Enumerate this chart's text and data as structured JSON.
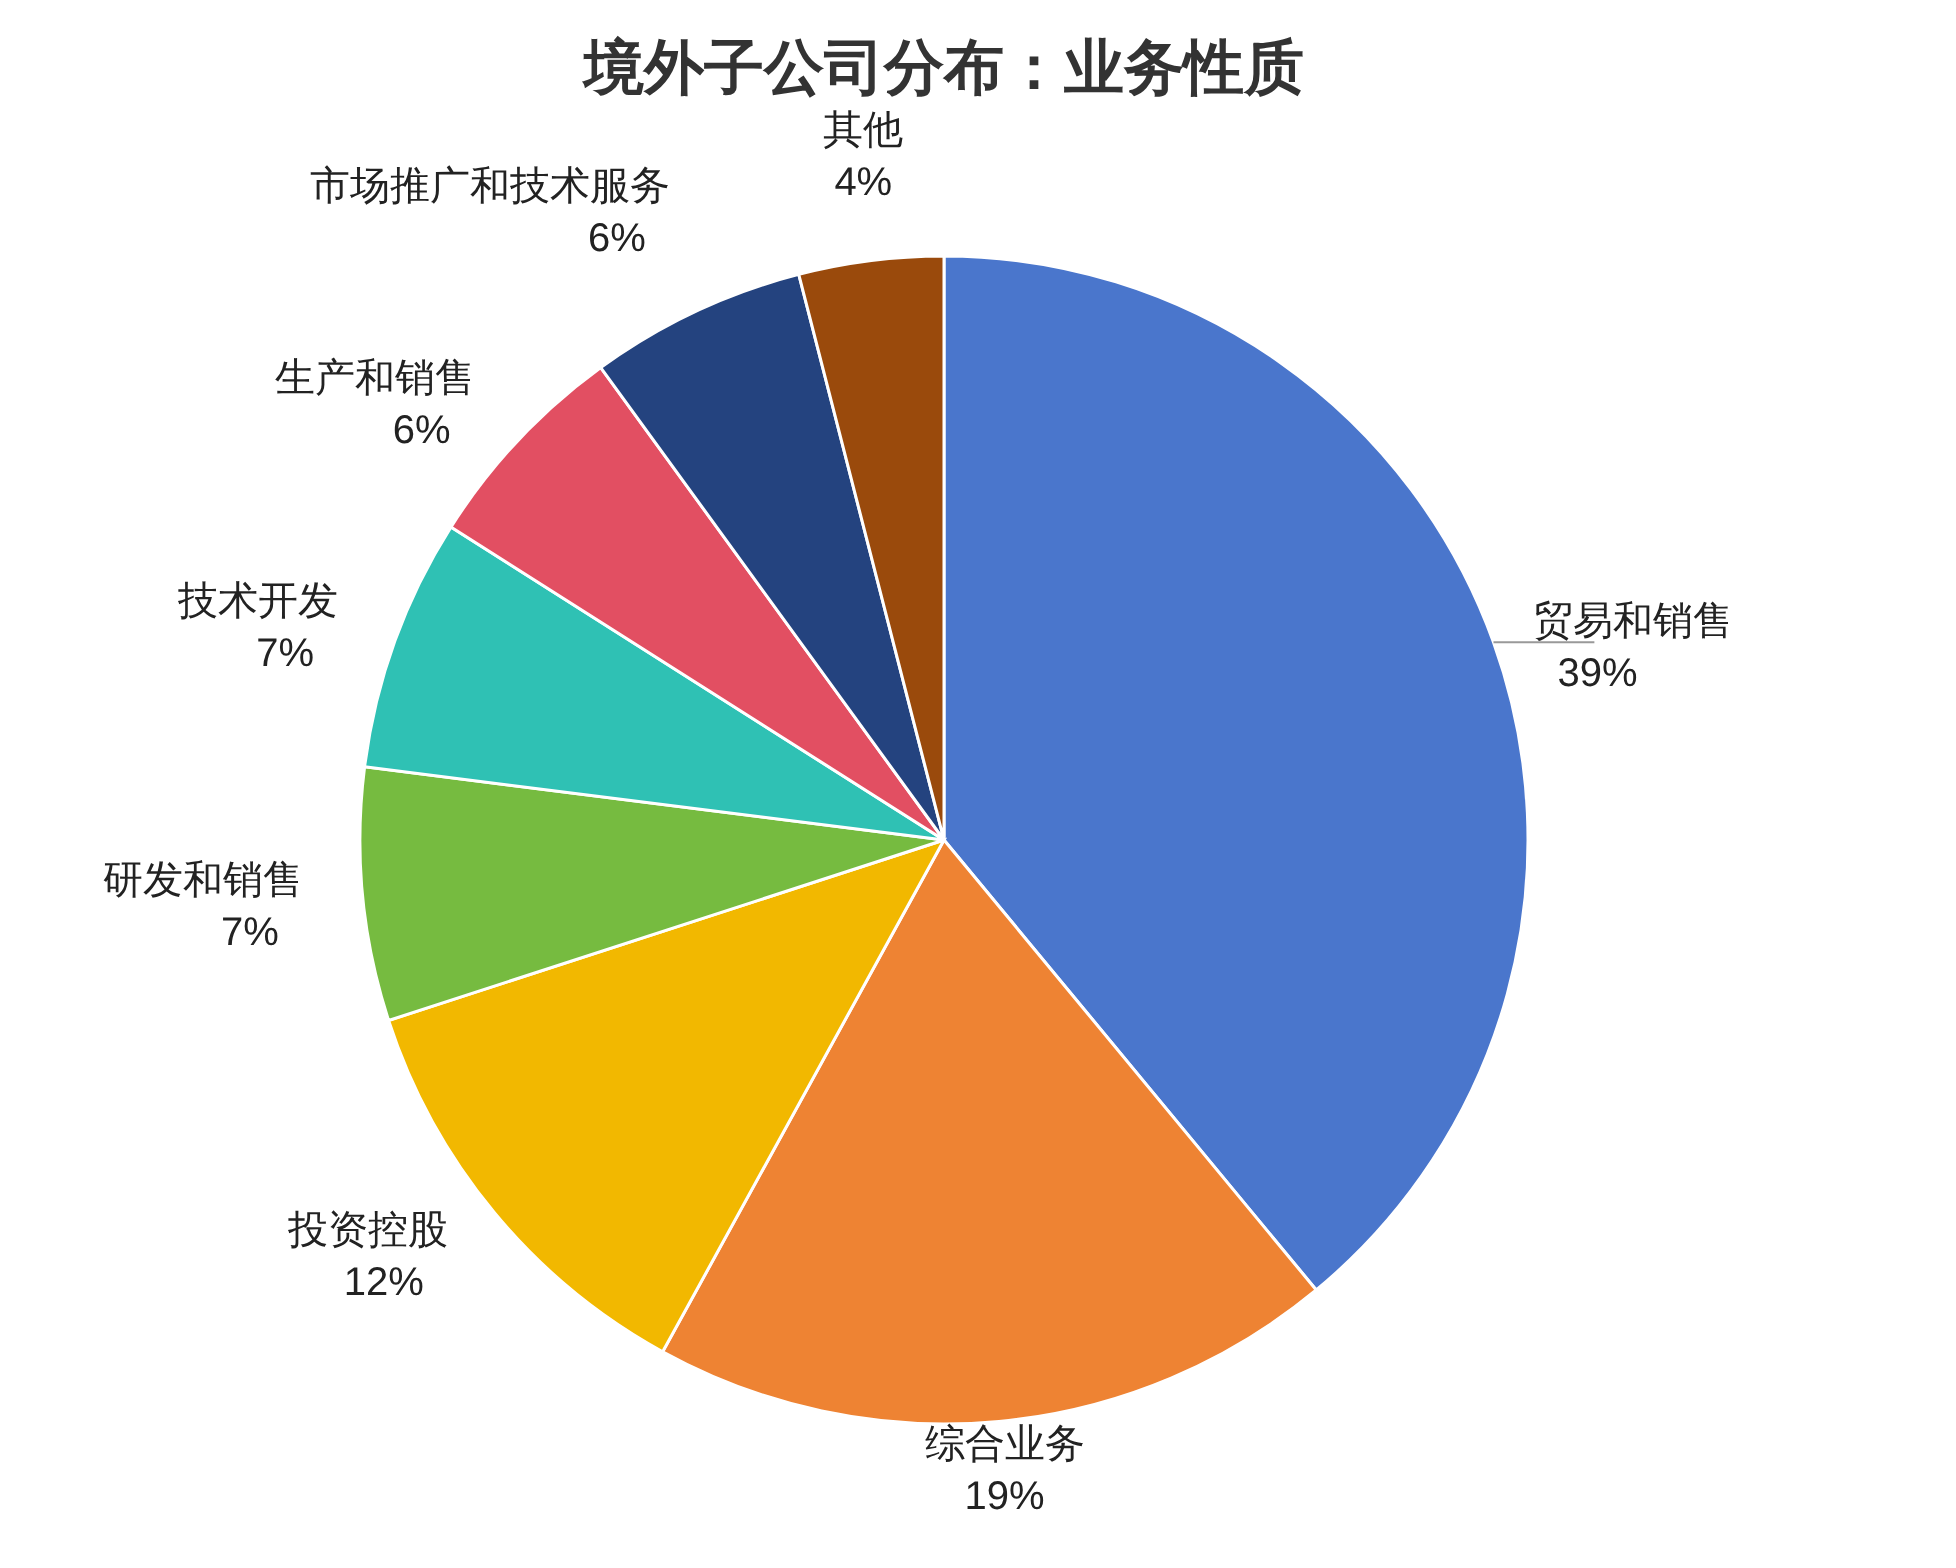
{
  "chart_data": {
    "type": "pie",
    "title": "境外子公司分布：业务性质",
    "categories": [
      "贸易和销售",
      "综合业务",
      "投资控股",
      "研发和销售",
      "技术开发",
      "生产和销售",
      "市场推广和技术服务",
      "其他"
    ],
    "values": [
      39,
      19,
      12,
      7,
      7,
      6,
      6,
      4
    ],
    "colors": [
      "#4a76cc",
      "#ee8333",
      "#f2b800",
      "#76bb40",
      "#2fc1b4",
      "#e24f62",
      "#24437f",
      "#9a4a0c"
    ],
    "value_labels": [
      "39%",
      "19%",
      "12%",
      "7%",
      "7%",
      "6%",
      "6%",
      "4%"
    ]
  }
}
